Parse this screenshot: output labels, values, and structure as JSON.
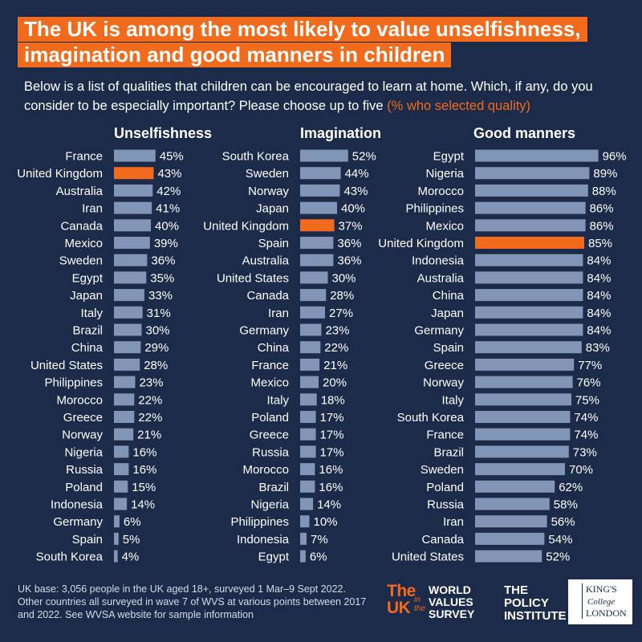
{
  "header": {
    "title_line1": "The UK is among the most likely to value unselfishness,",
    "title_line2": "imagination and good manners in children",
    "subtitle_main": "Below is a list of qualities that children can be encouraged to learn at home. Which, if any, do you consider to be especially important? Please choose up to five ",
    "subtitle_accent": "(% who selected quality)"
  },
  "colors": {
    "background": "#1c2b4a",
    "bar_default": "#8295b6",
    "bar_highlight": "#f26b1d",
    "accent": "#f26b1d",
    "text": "#ffffff"
  },
  "chart_data": [
    {
      "type": "bar",
      "orientation": "horizontal",
      "title": "Unselfishness",
      "highlight": "United Kingdom",
      "categories": [
        "France",
        "United Kingdom",
        "Australia",
        "Iran",
        "Canada",
        "Mexico",
        "Sweden",
        "Egypt",
        "Japan",
        "Italy",
        "Brazil",
        "China",
        "United States",
        "Philippines",
        "Morocco",
        "Greece",
        "Norway",
        "Nigeria",
        "Russia",
        "Poland",
        "Indonesia",
        "Germany",
        "Spain",
        "South Korea"
      ],
      "values": [
        45,
        43,
        42,
        41,
        40,
        39,
        36,
        35,
        33,
        31,
        30,
        29,
        28,
        23,
        22,
        22,
        21,
        16,
        16,
        15,
        14,
        6,
        5,
        4
      ],
      "value_suffix": "%"
    },
    {
      "type": "bar",
      "orientation": "horizontal",
      "title": "Imagination",
      "highlight": "United Kingdom",
      "categories": [
        "South Korea",
        "Sweden",
        "Norway",
        "Japan",
        "United Kingdom",
        "Spain",
        "Australia",
        "United States",
        "Canada",
        "Iran",
        "Germany",
        "China",
        "France",
        "Mexico",
        "Italy",
        "Poland",
        "Greece",
        "Russia",
        "Morocco",
        "Brazil",
        "Nigeria",
        "Philippines",
        "Indonesia",
        "Egypt"
      ],
      "values": [
        52,
        44,
        43,
        40,
        37,
        36,
        36,
        30,
        28,
        27,
        23,
        22,
        21,
        20,
        18,
        17,
        17,
        17,
        16,
        16,
        14,
        10,
        7,
        6
      ],
      "value_suffix": "%"
    },
    {
      "type": "bar",
      "orientation": "horizontal",
      "title": "Good manners",
      "highlight": "United Kingdom",
      "categories": [
        "Egypt",
        "Nigeria",
        "Morocco",
        "Philippines",
        "Mexico",
        "United Kingdom",
        "Indonesia",
        "Australia",
        "China",
        "Japan",
        "Germany",
        "Spain",
        "Greece",
        "Norway",
        "Italy",
        "South Korea",
        "France",
        "Brazil",
        "Sweden",
        "Poland",
        "Russia",
        "Iran",
        "Canada",
        "United States"
      ],
      "values": [
        96,
        89,
        88,
        86,
        86,
        85,
        84,
        84,
        84,
        84,
        84,
        83,
        77,
        76,
        75,
        74,
        74,
        73,
        70,
        62,
        58,
        56,
        54,
        52
      ],
      "value_suffix": "%"
    }
  ],
  "footer": {
    "note": "UK base: 3,056 people in the UK aged 18+, surveyed 1 Mar–9 Sept 2022. Other countries all surveyed in wave 7 of WVS at various points between 2017 and 2022. See WVSA website for sample information"
  },
  "logos": {
    "uk_logo_big": "The UK",
    "uk_logo_small": "in the",
    "wvs_logo": "WORLD VALUES SURVEY",
    "policy_logo": "THE POLICY INSTITUTE",
    "kings_line1": "KING'S",
    "kings_line2": "College",
    "kings_line3": "LONDON"
  }
}
